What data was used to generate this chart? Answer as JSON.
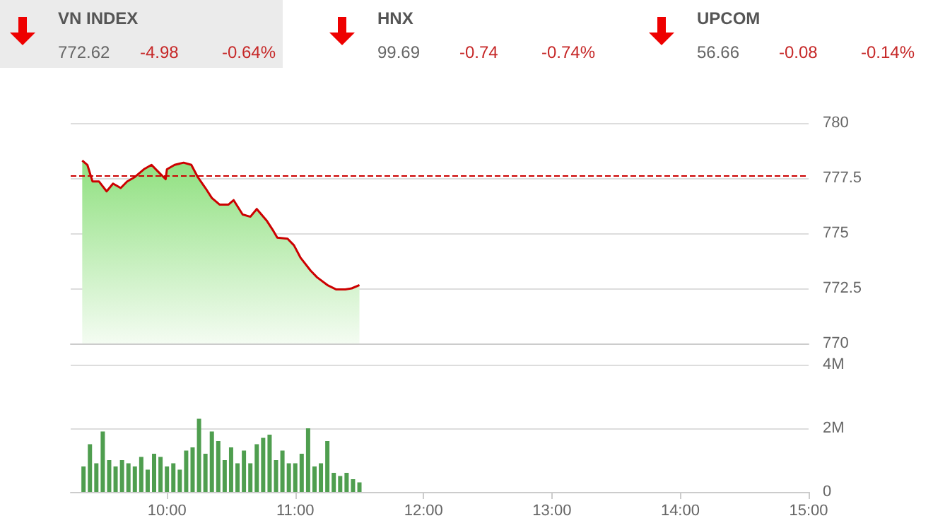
{
  "chart_data": [
    {
      "type": "other",
      "title": "VN INDEX",
      "annotations": [
        "772.62",
        "-4.98",
        "-0.64%"
      ]
    },
    {
      "type": "other",
      "title": "HNX",
      "annotations": [
        "99.69",
        "-0.74",
        "-0.74%"
      ]
    },
    {
      "type": "other",
      "title": "UPCOM",
      "annotations": [
        "56.66",
        "-0.08",
        "-0.14%"
      ]
    },
    {
      "type": "area",
      "xlim": [
        9.25,
        15
      ],
      "ylim": [
        770,
        780
      ],
      "yticks": [
        770,
        772.5,
        775,
        777.5,
        780
      ],
      "tick_labels": "y",
      "grid": "y",
      "marker": "none",
      "series": [
        {
          "color": "#cc0000",
          "x": [
            9.34,
            9.38,
            9.42,
            9.47,
            9.53,
            9.58,
            9.64,
            9.69,
            9.75,
            9.82,
            9.88,
            9.93,
            9.99,
            10.0,
            10.06,
            10.13,
            10.19,
            10.24,
            10.3,
            10.35,
            10.41,
            10.48,
            10.52,
            10.59,
            10.65,
            10.7,
            10.78,
            10.83,
            10.86,
            10.94,
            10.99,
            11.04,
            11.12,
            11.17,
            11.25,
            11.32,
            11.39,
            11.44,
            11.5
          ],
          "values": [
            778.3,
            778.1,
            777.35,
            777.35,
            776.9,
            777.25,
            777.05,
            777.35,
            777.55,
            777.9,
            778.1,
            777.8,
            777.45,
            777.9,
            778.1,
            778.2,
            778.1,
            777.55,
            777.05,
            776.6,
            776.3,
            776.3,
            776.5,
            775.85,
            775.75,
            776.1,
            775.55,
            775.1,
            774.8,
            774.75,
            774.45,
            773.9,
            773.3,
            773.0,
            772.65,
            772.45,
            772.45,
            772.5,
            772.65
          ]
        }
      ],
      "ref_lines": [
        {
          "axis": "y",
          "value": 777.6,
          "color": "#cc0000",
          "line_style": "dashed"
        }
      ]
    },
    {
      "type": "bar",
      "xlim": [
        9.25,
        15
      ],
      "xticks": [
        {
          "value": 10,
          "label": "10:00"
        },
        {
          "value": 11,
          "label": "11:00"
        },
        {
          "value": 12,
          "label": "12:00"
        },
        {
          "value": 13,
          "label": "13:00"
        },
        {
          "value": 14,
          "label": "14:00"
        },
        {
          "value": 15,
          "label": "15:00"
        }
      ],
      "ylim": [
        0,
        4
      ],
      "yticks": [
        {
          "value": 0,
          "label": "0"
        },
        {
          "value": 2,
          "label": "2M"
        },
        {
          "value": 4,
          "label": "4M"
        }
      ],
      "grid": "y",
      "series": [
        {
          "color": "#4f9e4f",
          "x": [
            9.35,
            9.4,
            9.45,
            9.5,
            9.55,
            9.6,
            9.65,
            9.7,
            9.75,
            9.8,
            9.85,
            9.9,
            9.95,
            10.0,
            10.05,
            10.1,
            10.15,
            10.2,
            10.25,
            10.3,
            10.35,
            10.4,
            10.45,
            10.5,
            10.55,
            10.6,
            10.65,
            10.7,
            10.75,
            10.8,
            10.85,
            10.9,
            10.95,
            11.0,
            11.05,
            11.1,
            11.15,
            11.2,
            11.25,
            11.3,
            11.35,
            11.4,
            11.45,
            11.5
          ],
          "values": [
            0.8,
            1.5,
            0.9,
            1.9,
            1.0,
            0.8,
            1.0,
            0.9,
            0.8,
            1.1,
            0.7,
            1.2,
            1.1,
            0.8,
            0.9,
            0.7,
            1.3,
            1.4,
            2.3,
            1.2,
            1.9,
            1.6,
            1.0,
            1.4,
            0.9,
            1.3,
            0.9,
            1.5,
            1.7,
            1.8,
            1.0,
            1.3,
            0.9,
            0.9,
            1.2,
            2.0,
            0.8,
            0.9,
            1.6,
            0.6,
            0.5,
            0.6,
            0.4,
            0.3
          ]
        }
      ]
    }
  ]
}
